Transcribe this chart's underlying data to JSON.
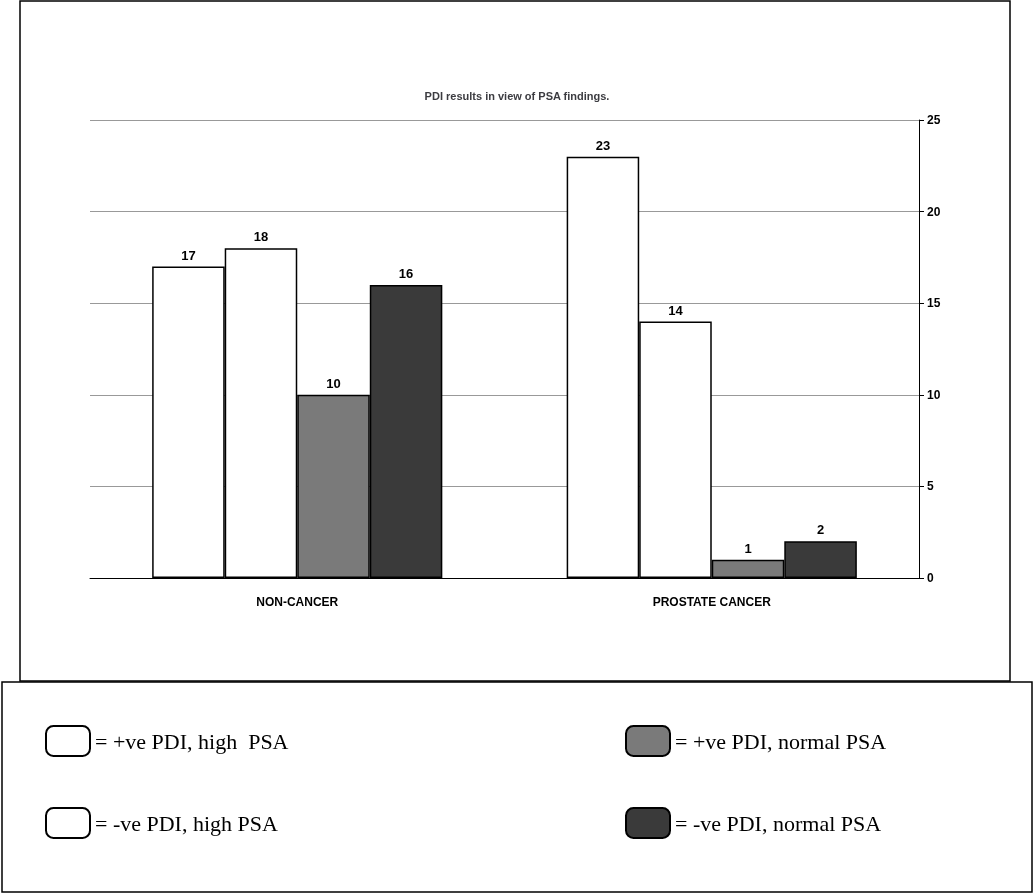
{
  "chart_data": {
    "type": "bar",
    "title": "PDI results in view of PSA findings.",
    "categories": [
      "NON-CANCER",
      "PROSTATE CANCER"
    ],
    "series": [
      {
        "name": "= +ve PDI, high  PSA",
        "color": "#ffffff",
        "values": [
          17,
          23
        ]
      },
      {
        "name": "= -ve PDI, high PSA",
        "color": "#ffffff",
        "values": [
          18,
          14
        ]
      },
      {
        "name": "= +ve PDI, normal PSA",
        "color": "#7a7a7a",
        "values": [
          10,
          1
        ]
      },
      {
        "name": "= -ve PDI, normal PSA",
        "color": "#3a3a3a",
        "values": [
          16,
          2
        ]
      }
    ],
    "ylim": [
      0,
      25
    ],
    "yticks": [
      0,
      5,
      10,
      15,
      20,
      25
    ],
    "grid": "y",
    "data_labels": true,
    "legend": "bottom"
  }
}
